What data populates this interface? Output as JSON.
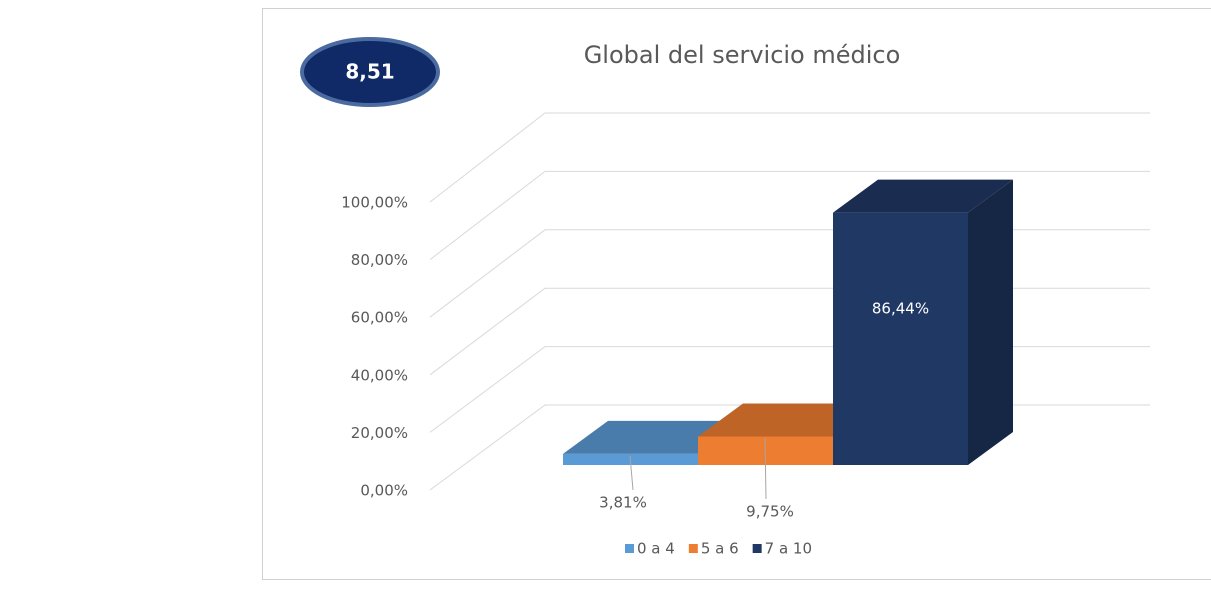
{
  "badge": "8,51",
  "chart_data": {
    "type": "bar3d",
    "title": "Global del servicio médico",
    "series": [
      {
        "name": "0 a 4",
        "color": "#5b9bd5",
        "values": [
          3.81
        ],
        "value_labels": [
          "3,81%"
        ]
      },
      {
        "name": "5 a 6",
        "color": "#ed7d31",
        "values": [
          9.75
        ],
        "value_labels": [
          "9,75%"
        ]
      },
      {
        "name": "7 a 10",
        "color": "#203864",
        "values": [
          86.44
        ],
        "value_labels": [
          "86,44%"
        ]
      }
    ],
    "ylim": [
      0,
      100
    ],
    "yticks": [
      {
        "value": 0,
        "label": "0,00%"
      },
      {
        "value": 20,
        "label": "20,00%"
      },
      {
        "value": 40,
        "label": "40,00%"
      },
      {
        "value": 60,
        "label": "60,00%"
      },
      {
        "value": 80,
        "label": "80,00%"
      },
      {
        "value": 100,
        "label": "100,00%"
      }
    ],
    "grid": true,
    "legend": "bottom"
  }
}
